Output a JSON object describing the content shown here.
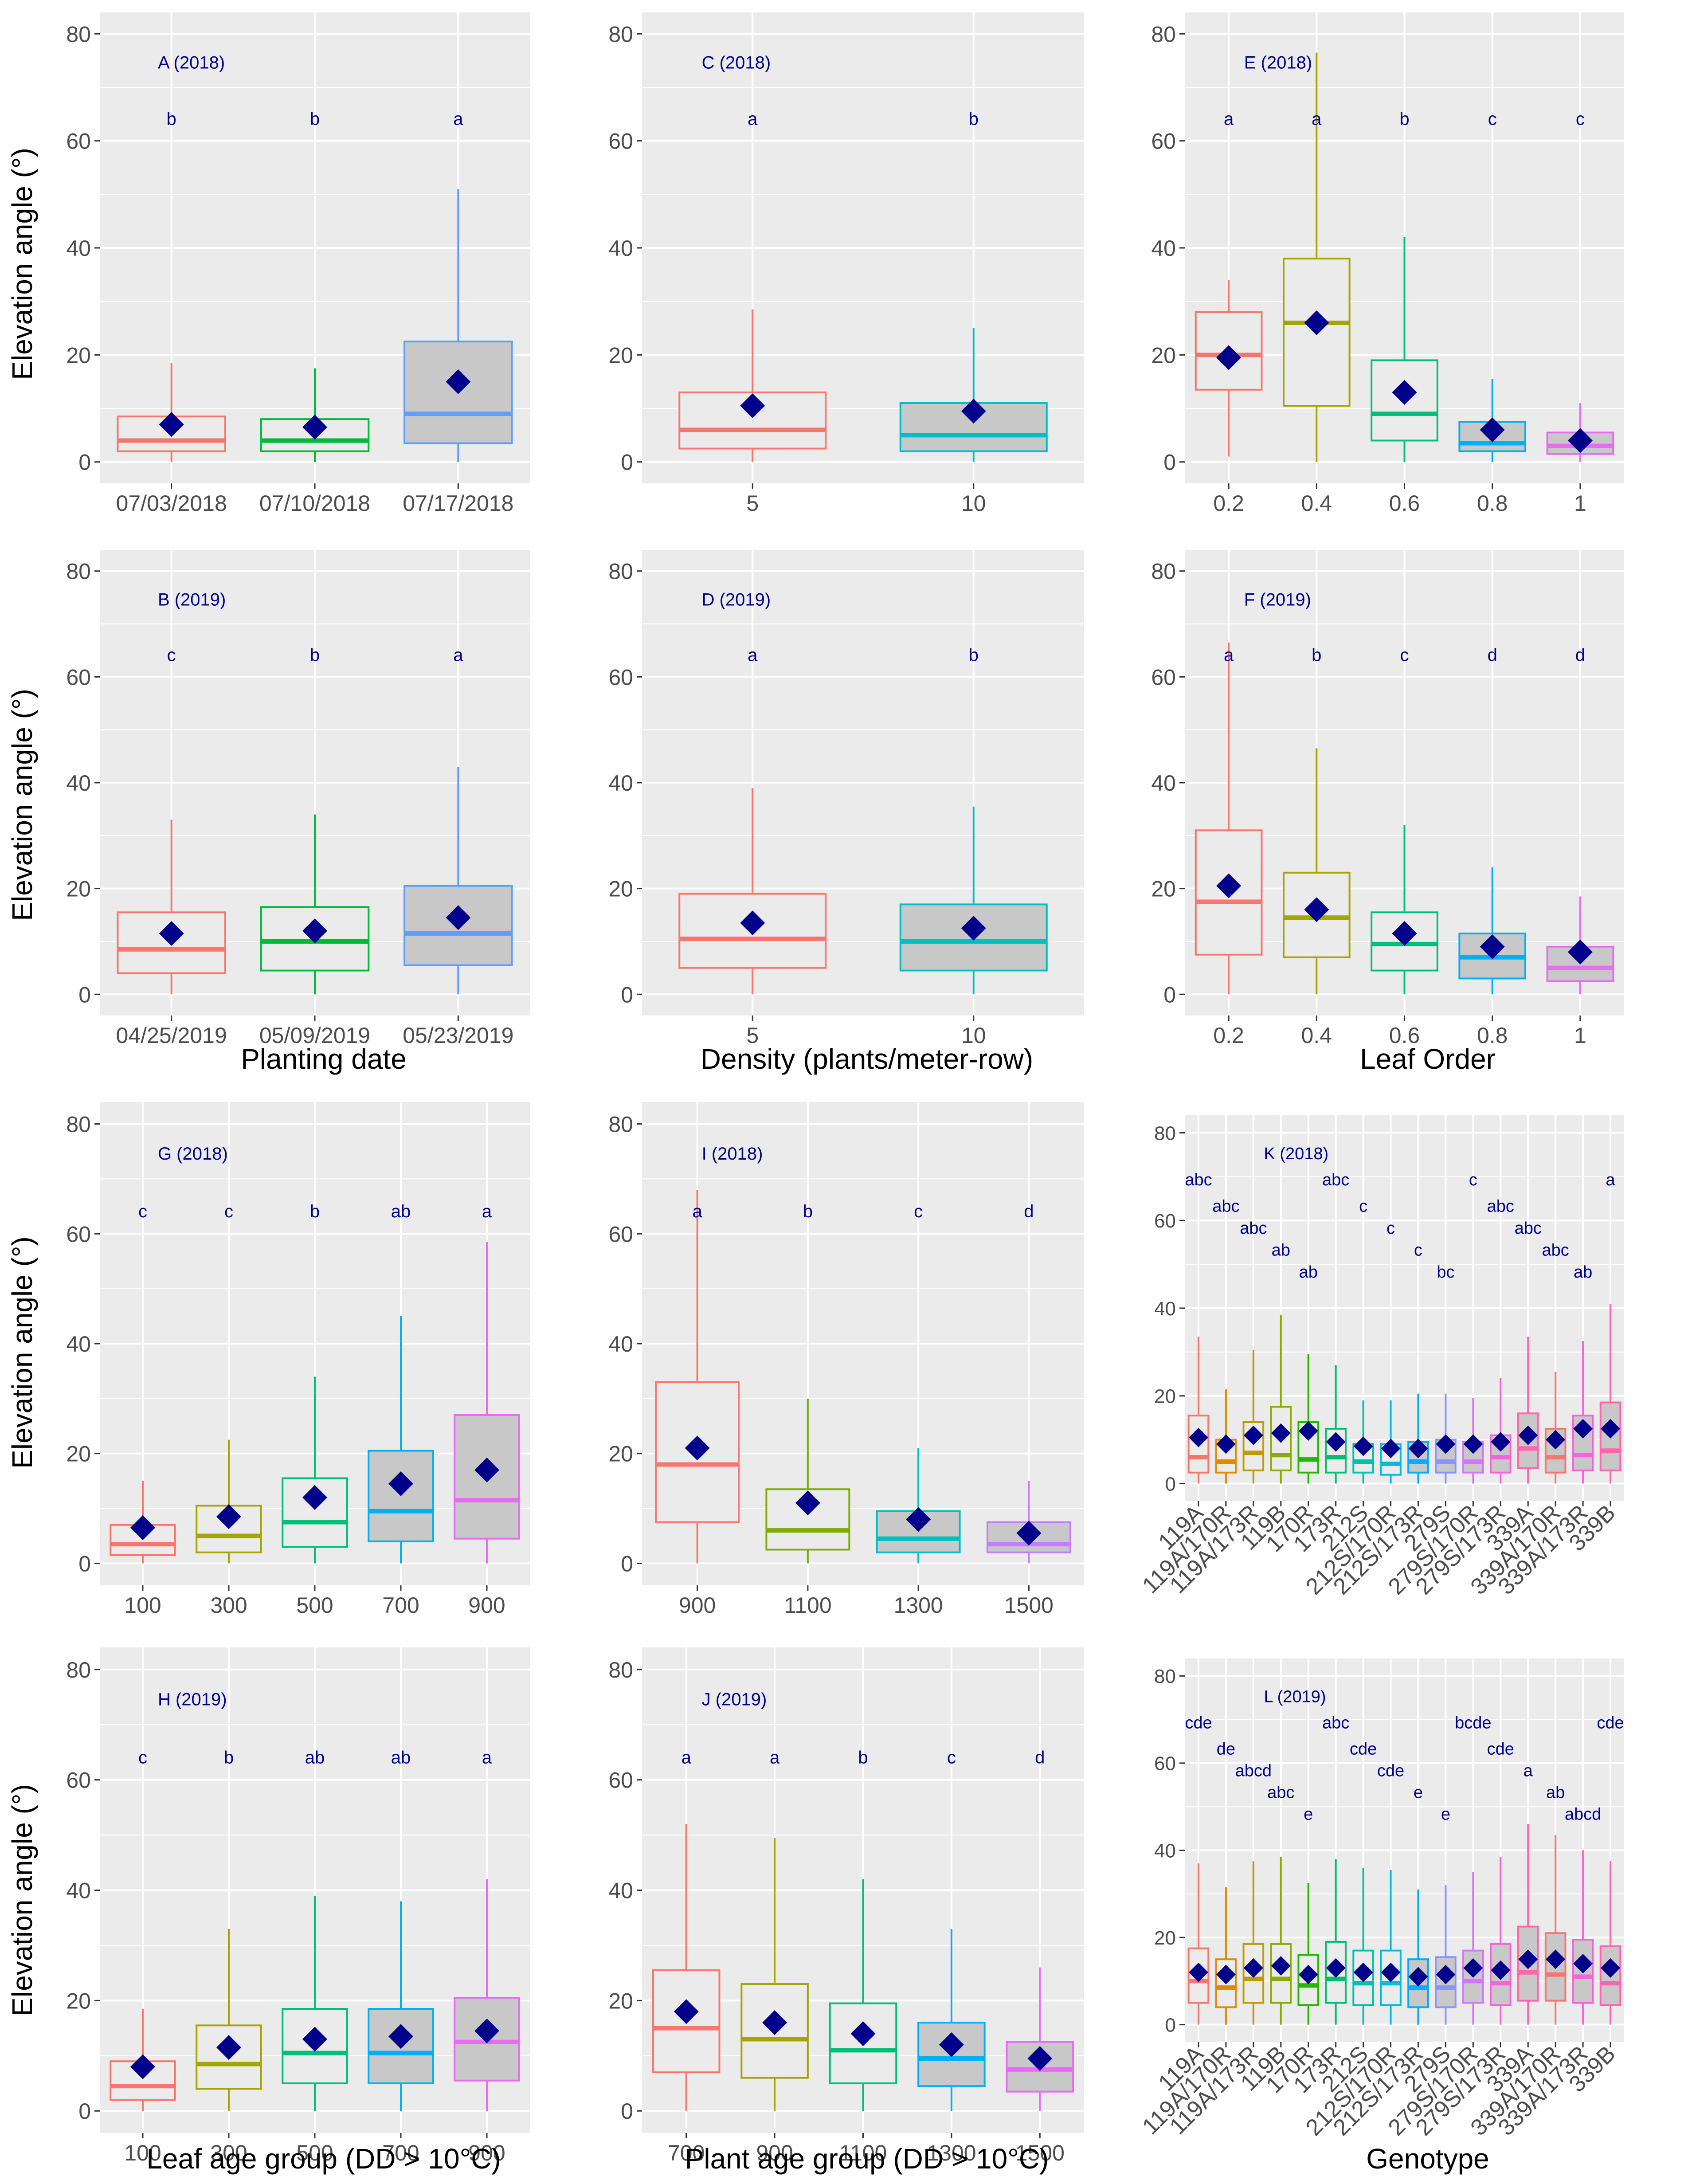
{
  "figure": {
    "y_axis_label": "Elevation angle (°)",
    "y_ticks": [
      0,
      20,
      40,
      60,
      80
    ],
    "row_x_titles": [
      "",
      "Planting date",
      "",
      "Leaf age group (DD > 10°C)"
    ],
    "colors": {
      "panel_bg": "#ebebeb",
      "grid": "#ffffff",
      "box_fill": "#c8c8c8",
      "mean_marker": "#00008b",
      "annotation": "#00008b"
    }
  },
  "chart_data": [
    {
      "id": "A",
      "type": "box",
      "title": "A (2018)",
      "ylim": [
        -4,
        84
      ],
      "xlabel": "",
      "ylabel": "Elevation angle (°)",
      "categories": [
        "07/03/2018",
        "07/10/2018",
        "07/17/2018"
      ],
      "colors": [
        "#F8766D",
        "#00BA38",
        "#619CFF"
      ],
      "boxes": [
        {
          "low": 0,
          "q1": 2,
          "median": 4,
          "q3": 8.5,
          "high": 18.5,
          "mean": 7
        },
        {
          "low": 0,
          "q1": 2,
          "median": 4,
          "q3": 8,
          "high": 17.5,
          "mean": 6.5
        },
        {
          "low": 0,
          "q1": 3.5,
          "median": 9,
          "q3": 22.5,
          "high": 51,
          "mean": 15
        }
      ],
      "letters": [
        "b",
        "b",
        "a"
      ]
    },
    {
      "id": "C",
      "type": "box",
      "title": "C (2018)",
      "ylim": [
        -4,
        84
      ],
      "xlabel": "",
      "ylabel": "",
      "categories": [
        "5",
        "10"
      ],
      "colors": [
        "#F8766D",
        "#00BFC4"
      ],
      "boxes": [
        {
          "low": 0,
          "q1": 2.5,
          "median": 6,
          "q3": 13,
          "high": 28.5,
          "mean": 10.5
        },
        {
          "low": 0,
          "q1": 2,
          "median": 5,
          "q3": 11,
          "high": 25,
          "mean": 9.5
        }
      ],
      "letters": [
        "a",
        "b"
      ]
    },
    {
      "id": "E",
      "type": "box",
      "title": "E (2018)",
      "ylim": [
        -4,
        84
      ],
      "xlabel": "",
      "ylabel": "",
      "categories": [
        "0.2",
        "0.4",
        "0.6",
        "0.8",
        "1"
      ],
      "colors": [
        "#F8766D",
        "#A3A500",
        "#00BF7D",
        "#00B0F6",
        "#E76BF3"
      ],
      "boxes": [
        {
          "low": 1,
          "q1": 13.5,
          "median": 20,
          "q3": 28,
          "high": 34,
          "mean": 19.5
        },
        {
          "low": 0,
          "q1": 10.5,
          "median": 26,
          "q3": 38,
          "high": 76.5,
          "mean": 26
        },
        {
          "low": 0,
          "q1": 4,
          "median": 9,
          "q3": 19,
          "high": 42,
          "mean": 13
        },
        {
          "low": 0,
          "q1": 2,
          "median": 3.5,
          "q3": 7.5,
          "high": 15.5,
          "mean": 6
        },
        {
          "low": 0,
          "q1": 1.5,
          "median": 3,
          "q3": 5.5,
          "high": 11,
          "mean": 4
        }
      ],
      "letters": [
        "a",
        "a",
        "b",
        "c",
        "c"
      ]
    },
    {
      "id": "B",
      "type": "box",
      "title": "B (2019)",
      "ylim": [
        -4,
        84
      ],
      "xlabel": "Planting date",
      "ylabel": "Elevation angle (°)",
      "categories": [
        "04/25/2019",
        "05/09/2019",
        "05/23/2019"
      ],
      "colors": [
        "#F8766D",
        "#00BA38",
        "#619CFF"
      ],
      "boxes": [
        {
          "low": 0,
          "q1": 4,
          "median": 8.5,
          "q3": 15.5,
          "high": 33,
          "mean": 11.5
        },
        {
          "low": 0,
          "q1": 4.5,
          "median": 10,
          "q3": 16.5,
          "high": 34,
          "mean": 12
        },
        {
          "low": 0,
          "q1": 5.5,
          "median": 11.5,
          "q3": 20.5,
          "high": 43,
          "mean": 14.5
        }
      ],
      "letters": [
        "c",
        "b",
        "a"
      ]
    },
    {
      "id": "D",
      "type": "box",
      "title": "D (2019)",
      "ylim": [
        -4,
        84
      ],
      "xlabel": "Density (plants/meter-row)",
      "ylabel": "",
      "categories": [
        "5",
        "10"
      ],
      "colors": [
        "#F8766D",
        "#00BFC4"
      ],
      "boxes": [
        {
          "low": 0,
          "q1": 5,
          "median": 10.5,
          "q3": 19,
          "high": 39,
          "mean": 13.5
        },
        {
          "low": 0,
          "q1": 4.5,
          "median": 10,
          "q3": 17,
          "high": 35.5,
          "mean": 12.5
        }
      ],
      "letters": [
        "a",
        "b"
      ]
    },
    {
      "id": "F",
      "type": "box",
      "title": "F (2019)",
      "ylim": [
        -4,
        84
      ],
      "xlabel": "Leaf Order",
      "ylabel": "",
      "categories": [
        "0.2",
        "0.4",
        "0.6",
        "0.8",
        "1"
      ],
      "colors": [
        "#F8766D",
        "#A3A500",
        "#00BF7D",
        "#00B0F6",
        "#E76BF3"
      ],
      "boxes": [
        {
          "low": 0,
          "q1": 7.5,
          "median": 17.5,
          "q3": 31,
          "high": 66.5,
          "mean": 20.5
        },
        {
          "low": 0,
          "q1": 7,
          "median": 14.5,
          "q3": 23,
          "high": 46.5,
          "mean": 16
        },
        {
          "low": 0,
          "q1": 4.5,
          "median": 9.5,
          "q3": 15.5,
          "high": 32,
          "mean": 11.5
        },
        {
          "low": 0,
          "q1": 3,
          "median": 7,
          "q3": 11.5,
          "high": 24,
          "mean": 9
        },
        {
          "low": 0,
          "q1": 2.5,
          "median": 5,
          "q3": 9,
          "high": 18.5,
          "mean": 8
        }
      ],
      "letters": [
        "a",
        "b",
        "c",
        "d",
        "d"
      ]
    },
    {
      "id": "G",
      "type": "box",
      "title": "G (2018)",
      "ylim": [
        -4,
        84
      ],
      "xlabel": "",
      "ylabel": "Elevation angle (°)",
      "categories": [
        "100",
        "300",
        "500",
        "700",
        "900"
      ],
      "colors": [
        "#F8766D",
        "#A3A500",
        "#00BF7D",
        "#00B0F6",
        "#E76BF3"
      ],
      "boxes": [
        {
          "low": 0,
          "q1": 1.5,
          "median": 3.5,
          "q3": 7,
          "high": 15,
          "mean": 6.5
        },
        {
          "low": 0,
          "q1": 2,
          "median": 5,
          "q3": 10.5,
          "high": 22.5,
          "mean": 8.5
        },
        {
          "low": 0,
          "q1": 3,
          "median": 7.5,
          "q3": 15.5,
          "high": 34,
          "mean": 12
        },
        {
          "low": 0,
          "q1": 4,
          "median": 9.5,
          "q3": 20.5,
          "high": 45,
          "mean": 14.5
        },
        {
          "low": 0,
          "q1": 4.5,
          "median": 11.5,
          "q3": 27,
          "high": 58.5,
          "mean": 17
        }
      ],
      "letters": [
        "c",
        "c",
        "b",
        "ab",
        "a"
      ]
    },
    {
      "id": "I",
      "type": "box",
      "title": "I (2018)",
      "ylim": [
        -4,
        84
      ],
      "xlabel": "",
      "ylabel": "",
      "categories": [
        "900",
        "1100",
        "1300",
        "1500"
      ],
      "colors": [
        "#F8766D",
        "#7CAE00",
        "#00BFC4",
        "#C77CFF"
      ],
      "boxes": [
        {
          "low": 0,
          "q1": 7.5,
          "median": 18,
          "q3": 33,
          "high": 68,
          "mean": 21
        },
        {
          "low": 0,
          "q1": 2.5,
          "median": 6,
          "q3": 13.5,
          "high": 30,
          "mean": 11
        },
        {
          "low": 0,
          "q1": 2,
          "median": 4.5,
          "q3": 9.5,
          "high": 21,
          "mean": 8
        },
        {
          "low": 0,
          "q1": 2,
          "median": 3.5,
          "q3": 7.5,
          "high": 15,
          "mean": 5.5
        }
      ],
      "letters": [
        "a",
        "b",
        "c",
        "d"
      ]
    },
    {
      "id": "K",
      "type": "box",
      "title": "K (2018)",
      "ylim": [
        -4,
        84
      ],
      "xlabel": "",
      "ylabel": "",
      "categories": [
        "119A",
        "119A/170R",
        "119A/173R",
        "119B",
        "170R",
        "173R",
        "212S",
        "212S/170R",
        "212S/173R",
        "279S",
        "279S/170R",
        "279S/173R",
        "339A",
        "339A/170R",
        "339A/173R",
        "339B"
      ],
      "colors": [
        "#F8766D",
        "#E18A00",
        "#BE9C00",
        "#8CAB00",
        "#24B700",
        "#00BE70",
        "#00C1AB",
        "#00BBDA",
        "#00ACFC",
        "#8B93FF",
        "#D575FE",
        "#F962DD",
        "#FF65AC",
        "#F8766D",
        "#F962DD",
        "#FF65AC"
      ],
      "boxes": [
        {
          "low": 0,
          "q1": 2.5,
          "median": 6,
          "q3": 15.5,
          "high": 33.5,
          "mean": 10.5
        },
        {
          "low": 0,
          "q1": 2.5,
          "median": 5,
          "q3": 10,
          "high": 21.5,
          "mean": 9
        },
        {
          "low": 0,
          "q1": 3,
          "median": 7,
          "q3": 14,
          "high": 30.5,
          "mean": 11
        },
        {
          "low": 0,
          "q1": 3,
          "median": 6.5,
          "q3": 17.5,
          "high": 38.5,
          "mean": 11.5
        },
        {
          "low": 0,
          "q1": 2.5,
          "median": 5.5,
          "q3": 14,
          "high": 29.5,
          "mean": 12
        },
        {
          "low": 0,
          "q1": 2.5,
          "median": 6,
          "q3": 12.5,
          "high": 27,
          "mean": 9.5
        },
        {
          "low": 0,
          "q1": 2.5,
          "median": 5,
          "q3": 9,
          "high": 19,
          "mean": 8.5
        },
        {
          "low": 0,
          "q1": 2,
          "median": 4.5,
          "q3": 9,
          "high": 19,
          "mean": 8
        },
        {
          "low": 0,
          "q1": 2.5,
          "median": 5,
          "q3": 9.5,
          "high": 20.5,
          "mean": 8
        },
        {
          "low": 0,
          "q1": 2.5,
          "median": 5,
          "q3": 10,
          "high": 20.5,
          "mean": 9
        },
        {
          "low": 0,
          "q1": 2.5,
          "median": 5,
          "q3": 9.5,
          "high": 19.5,
          "mean": 9
        },
        {
          "low": 0,
          "q1": 2.5,
          "median": 6,
          "q3": 11,
          "high": 24,
          "mean": 9.5
        },
        {
          "low": 0,
          "q1": 3.5,
          "median": 8,
          "q3": 16,
          "high": 33.5,
          "mean": 11
        },
        {
          "low": 0,
          "q1": 2.5,
          "median": 6,
          "q3": 12.5,
          "high": 25.5,
          "mean": 10
        },
        {
          "low": 0,
          "q1": 3,
          "median": 6.5,
          "q3": 15.5,
          "high": 32.5,
          "mean": 12.5
        },
        {
          "low": 0,
          "q1": 3,
          "median": 7.5,
          "q3": 18.5,
          "high": 41,
          "mean": 12.5
        }
      ],
      "letters": [
        "abc",
        "abc",
        "abc",
        "ab",
        "ab",
        "abc",
        "c",
        "c",
        "c",
        "bc",
        "c",
        "abc",
        "abc",
        "abc",
        "ab",
        "a"
      ]
    },
    {
      "id": "H",
      "type": "box",
      "title": "H (2019)",
      "ylim": [
        -4,
        84
      ],
      "xlabel": "Leaf age group (DD > 10°C)",
      "ylabel": "Elevation angle (°)",
      "categories": [
        "100",
        "300",
        "500",
        "700",
        "900"
      ],
      "colors": [
        "#F8766D",
        "#A3A500",
        "#00BF7D",
        "#00B0F6",
        "#E76BF3"
      ],
      "boxes": [
        {
          "low": 0,
          "q1": 2,
          "median": 4.5,
          "q3": 9,
          "high": 18.5,
          "mean": 8
        },
        {
          "low": 0,
          "q1": 4,
          "median": 8.5,
          "q3": 15.5,
          "high": 33,
          "mean": 11.5
        },
        {
          "low": 0,
          "q1": 5,
          "median": 10.5,
          "q3": 18.5,
          "high": 39,
          "mean": 13
        },
        {
          "low": 0,
          "q1": 5,
          "median": 10.5,
          "q3": 18.5,
          "high": 38,
          "mean": 13.5
        },
        {
          "low": 0,
          "q1": 5.5,
          "median": 12.5,
          "q3": 20.5,
          "high": 42,
          "mean": 14.5
        }
      ],
      "letters": [
        "c",
        "b",
        "ab",
        "ab",
        "a"
      ]
    },
    {
      "id": "J",
      "type": "box",
      "title": "J (2019)",
      "ylim": [
        -4,
        84
      ],
      "xlabel": "Plant age group (DD > 10°C)",
      "ylabel": "",
      "categories": [
        "700",
        "900",
        "1100",
        "1300",
        "1500"
      ],
      "colors": [
        "#F8766D",
        "#A3A500",
        "#00BF7D",
        "#00B0F6",
        "#E76BF3"
      ],
      "boxes": [
        {
          "low": 0,
          "q1": 7,
          "median": 15,
          "q3": 25.5,
          "high": 52,
          "mean": 18
        },
        {
          "low": 0,
          "q1": 6,
          "median": 13,
          "q3": 23,
          "high": 49.5,
          "mean": 16
        },
        {
          "low": 0,
          "q1": 5,
          "median": 11,
          "q3": 19.5,
          "high": 42,
          "mean": 14
        },
        {
          "low": 0,
          "q1": 4.5,
          "median": 9.5,
          "q3": 16,
          "high": 33,
          "mean": 12
        },
        {
          "low": 0,
          "q1": 3.5,
          "median": 7.5,
          "q3": 12.5,
          "high": 26,
          "mean": 9.5
        }
      ],
      "letters": [
        "a",
        "a",
        "b",
        "c",
        "d"
      ]
    },
    {
      "id": "L",
      "type": "box",
      "title": "L (2019)",
      "ylim": [
        -4,
        84
      ],
      "xlabel": "Genotype",
      "ylabel": "",
      "categories": [
        "119A",
        "119A/170R",
        "119A/173R",
        "119B",
        "170R",
        "173R",
        "212S",
        "212S/170R",
        "212S/173R",
        "279S",
        "279S/170R",
        "279S/173R",
        "339A",
        "339A/170R",
        "339A/173R",
        "339B"
      ],
      "colors": [
        "#F8766D",
        "#E18A00",
        "#BE9C00",
        "#8CAB00",
        "#24B700",
        "#00BE70",
        "#00C1AB",
        "#00BBDA",
        "#00ACFC",
        "#8B93FF",
        "#D575FE",
        "#F962DD",
        "#FF65AC",
        "#F8766D",
        "#F962DD",
        "#FF65AC"
      ],
      "boxes": [
        {
          "low": 0,
          "q1": 5,
          "median": 10,
          "q3": 17.5,
          "high": 37,
          "mean": 12
        },
        {
          "low": 0,
          "q1": 4,
          "median": 8.5,
          "q3": 15,
          "high": 31.5,
          "mean": 11.5
        },
        {
          "low": 0,
          "q1": 5,
          "median": 10.5,
          "q3": 18.5,
          "high": 37.5,
          "mean": 13
        },
        {
          "low": 0,
          "q1": 5,
          "median": 10.5,
          "q3": 18.5,
          "high": 38.5,
          "mean": 13.5
        },
        {
          "low": 0,
          "q1": 4.5,
          "median": 9,
          "q3": 16,
          "high": 32.5,
          "mean": 11.5
        },
        {
          "low": 0,
          "q1": 5,
          "median": 10.5,
          "q3": 19,
          "high": 38,
          "mean": 13
        },
        {
          "low": 0,
          "q1": 4.5,
          "median": 9.5,
          "q3": 17,
          "high": 36,
          "mean": 12
        },
        {
          "low": 0,
          "q1": 4.5,
          "median": 9.5,
          "q3": 17,
          "high": 35.5,
          "mean": 12
        },
        {
          "low": 0,
          "q1": 4,
          "median": 8.5,
          "q3": 15,
          "high": 31,
          "mean": 11
        },
        {
          "low": 0,
          "q1": 4,
          "median": 8.5,
          "q3": 15.5,
          "high": 32,
          "mean": 11.5
        },
        {
          "low": 0,
          "q1": 5,
          "median": 10,
          "q3": 17,
          "high": 35,
          "mean": 13
        },
        {
          "low": 0,
          "q1": 4.5,
          "median": 9.5,
          "q3": 18.5,
          "high": 38.5,
          "mean": 12.5
        },
        {
          "low": 0,
          "q1": 5.5,
          "median": 12,
          "q3": 22.5,
          "high": 46,
          "mean": 15
        },
        {
          "low": 0,
          "q1": 5.5,
          "median": 11.5,
          "q3": 21,
          "high": 43.5,
          "mean": 15
        },
        {
          "low": 0,
          "q1": 5,
          "median": 11,
          "q3": 19.5,
          "high": 40,
          "mean": 14
        },
        {
          "low": 0,
          "q1": 4.5,
          "median": 9.5,
          "q3": 18,
          "high": 37.5,
          "mean": 13
        }
      ],
      "letters": [
        "cde",
        "de",
        "abcd",
        "abc",
        "e",
        "abc",
        "cde",
        "cde",
        "e",
        "e",
        "bcde",
        "cde",
        "a",
        "ab",
        "abcd",
        "cde"
      ]
    }
  ]
}
